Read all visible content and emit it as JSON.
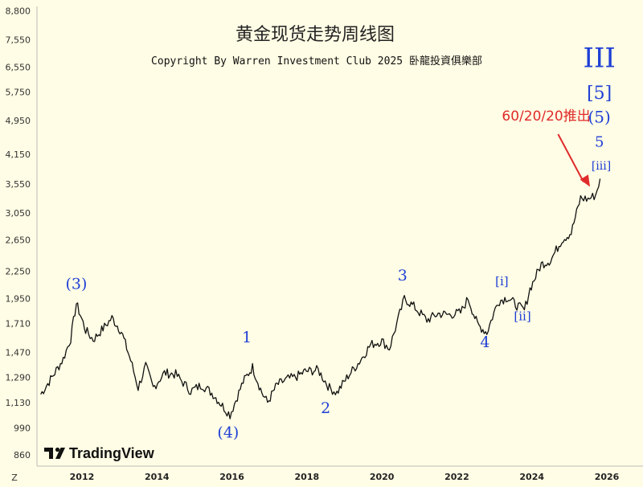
{
  "chart_data": {
    "type": "line",
    "title": "黄金现货走势周线图",
    "subtitle": "Copyright By Warren Investment Club 2025 卧龍投資俱樂部",
    "y_scale": "log",
    "ylim": [
      810,
      9000
    ],
    "xlim": [
      2010.8,
      2026.6
    ],
    "y_ticks": [
      "8,800",
      "7,550",
      "6,550",
      "5,750",
      "4,950",
      "4,150",
      "3,550",
      "3,050",
      "2,650",
      "2,250",
      "1,950",
      "1,710",
      "1,470",
      "1,290",
      "1,130",
      "990",
      "860"
    ],
    "x_ticks": [
      "2012",
      "2014",
      "2016",
      "2018",
      "2020",
      "2022",
      "2024",
      "2026"
    ],
    "corner_label": "Z",
    "series": [
      {
        "x": [
          2010.9,
          2011.2,
          2011.5,
          2011.7,
          2011.85,
          2012.1,
          2012.3,
          2012.6,
          2012.8,
          2013.05,
          2013.3,
          2013.5,
          2013.7,
          2013.9,
          2014.2,
          2014.5,
          2014.9,
          2015.2,
          2015.5,
          2015.75,
          2015.95,
          2016.3,
          2016.55,
          2016.8,
          2016.95,
          2017.2,
          2017.5,
          2017.7,
          2017.95,
          2018.3,
          2018.6,
          2018.8,
          2019.1,
          2019.4,
          2019.7,
          2020.0,
          2020.2,
          2020.6,
          2020.85,
          2021.2,
          2021.5,
          2021.8,
          2022.1,
          2022.3,
          2022.55,
          2022.8,
          2023.1,
          2023.35,
          2023.6,
          2023.8,
          2023.95,
          2024.25,
          2024.5,
          2024.8,
          2025.05,
          2025.3,
          2025.5,
          2025.7,
          2025.82
        ],
        "values": [
          1180,
          1290,
          1420,
          1580,
          1900,
          1650,
          1570,
          1680,
          1760,
          1640,
          1410,
          1220,
          1370,
          1220,
          1320,
          1310,
          1200,
          1240,
          1180,
          1110,
          1060,
          1260,
          1360,
          1190,
          1130,
          1240,
          1280,
          1290,
          1330,
          1340,
          1220,
          1190,
          1300,
          1400,
          1530,
          1560,
          1500,
          1950,
          1870,
          1740,
          1800,
          1790,
          1810,
          1950,
          1700,
          1630,
          1920,
          1960,
          1880,
          1830,
          2050,
          2330,
          2380,
          2650,
          2750,
          3300,
          3280,
          3350,
          3650
        ]
      }
    ],
    "wave_labels": [
      {
        "text": "(3)",
        "x": 2011.85,
        "y": 2050
      },
      {
        "text": "(4)",
        "x": 2015.9,
        "y": 940
      },
      {
        "text": "1",
        "x": 2016.4,
        "y": 1550
      },
      {
        "text": "2",
        "x": 2018.5,
        "y": 1070
      },
      {
        "text": "3",
        "x": 2020.55,
        "y": 2140
      },
      {
        "text": "4",
        "x": 2022.75,
        "y": 1510
      },
      {
        "text": "[i]",
        "x": 2023.2,
        "y": 2090
      },
      {
        "text": "[ii]",
        "x": 2023.75,
        "y": 1740
      },
      {
        "text": "[iii]",
        "x": 2025.85,
        "y": 3830
      },
      {
        "text": "5",
        "x": 2025.8,
        "y": 4320
      },
      {
        "text": "(5)",
        "x": 2025.8,
        "y": 4900
      },
      {
        "text": "[5]",
        "x": 2025.8,
        "y": 5550
      },
      {
        "text": "III",
        "x": 2025.8,
        "y": 6550
      }
    ],
    "annotation": {
      "text": "60/20/20推出",
      "x": 2023.2,
      "y": 4950,
      "arrow_to_x": 2025.55,
      "arrow_to_y": 3500
    }
  },
  "colors": {
    "background": "#fffde5",
    "price_line": "#111111",
    "wave_label": "#1f3fd6",
    "annotation": "#e02b2b",
    "axis_line": "#bbbbbb"
  },
  "watermark": {
    "brand": "TradingView",
    "icon": "tradingview-logo-icon"
  }
}
